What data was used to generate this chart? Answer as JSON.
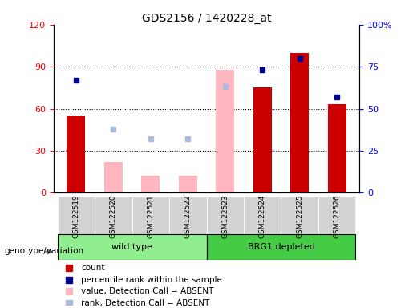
{
  "title": "GDS2156 / 1420228_at",
  "samples": [
    "GSM122519",
    "GSM122520",
    "GSM122521",
    "GSM122522",
    "GSM122523",
    "GSM122524",
    "GSM122525",
    "GSM122526"
  ],
  "count_values": [
    55,
    null,
    null,
    null,
    null,
    75,
    100,
    63
  ],
  "count_absent_values": [
    null,
    22,
    12,
    12,
    88,
    null,
    null,
    null
  ],
  "percentile_rank_values": [
    67,
    null,
    null,
    null,
    null,
    73,
    80,
    57
  ],
  "percentile_rank_absent_values": [
    null,
    38,
    32,
    32,
    63,
    null,
    null,
    null
  ],
  "group_wild_label": "wild type",
  "group_wild_color": "#90EE90",
  "group_brg1_label": "BRG1 depleted",
  "group_brg1_color": "#44CC44",
  "ylim_left": [
    0,
    120
  ],
  "ylim_right": [
    0,
    100
  ],
  "yticks_left": [
    0,
    30,
    60,
    90,
    120
  ],
  "yticks_right": [
    0,
    25,
    50,
    75,
    100
  ],
  "ytick_labels_left": [
    "0",
    "30",
    "60",
    "90",
    "120"
  ],
  "ytick_labels_right": [
    "0",
    "25",
    "50",
    "75",
    "100%"
  ],
  "color_count": "#CC0000",
  "color_rank": "#00008B",
  "color_absent_value": "#FFB6C1",
  "color_absent_rank": "#AABBDD",
  "genotype_label": "genotype/variation",
  "legend_items": [
    {
      "label": "count",
      "color": "#CC0000"
    },
    {
      "label": "percentile rank within the sample",
      "color": "#00008B"
    },
    {
      "label": "value, Detection Call = ABSENT",
      "color": "#FFB6C1"
    },
    {
      "label": "rank, Detection Call = ABSENT",
      "color": "#AABBDD"
    }
  ]
}
